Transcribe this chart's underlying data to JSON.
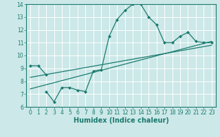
{
  "xlabel": "Humidex (Indice chaleur)",
  "xlim": [
    -0.5,
    23.5
  ],
  "ylim": [
    6,
    14
  ],
  "xticks": [
    0,
    1,
    2,
    3,
    4,
    5,
    6,
    7,
    8,
    9,
    10,
    11,
    12,
    13,
    14,
    15,
    16,
    17,
    18,
    19,
    20,
    21,
    22,
    23
  ],
  "yticks": [
    6,
    7,
    8,
    9,
    10,
    11,
    12,
    13,
    14
  ],
  "bg_color": "#cce8e8",
  "line_color": "#1a7a6e",
  "grid_color": "#ffffff",
  "line1_x": [
    0,
    1,
    2
  ],
  "line1_y": [
    9.2,
    9.2,
    8.5
  ],
  "line2_x": [
    2,
    3,
    4,
    5,
    6,
    7,
    8,
    9,
    10,
    11,
    12,
    13,
    14,
    15,
    16,
    17,
    18,
    19,
    20,
    21,
    22,
    23
  ],
  "line2_y": [
    7.2,
    6.4,
    7.5,
    7.5,
    7.3,
    7.2,
    8.8,
    8.9,
    11.5,
    12.8,
    13.5,
    14.0,
    14.0,
    13.0,
    12.4,
    11.0,
    11.0,
    11.5,
    11.8,
    11.1,
    11.0,
    11.0
  ],
  "line3_x": [
    0,
    23
  ],
  "line3_y": [
    7.4,
    11.1
  ],
  "line4_x": [
    0,
    23
  ],
  "line4_y": [
    8.3,
    10.8
  ],
  "marker_size": 2.5,
  "linewidth": 0.9,
  "xlabel_fontsize": 7,
  "tick_fontsize": 5.5
}
